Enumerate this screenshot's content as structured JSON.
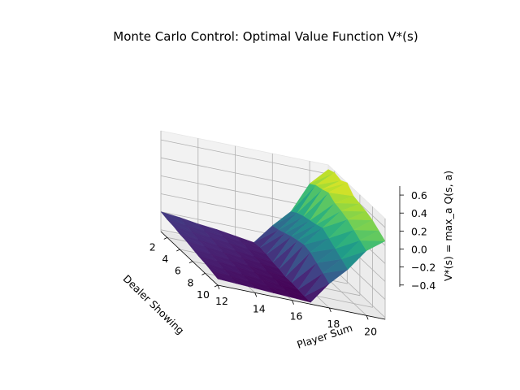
{
  "chart_data": {
    "type": "surface3d",
    "title": "Monte Carlo Control: Optimal Value Function V*(s)",
    "xlabel": "Dealer Showing",
    "ylabel": "Player Sum",
    "zlabel": "V*(s) = max_a Q(s, a)",
    "x_ticks": [
      "2",
      "4",
      "6",
      "8",
      "10"
    ],
    "y_ticks": [
      "12",
      "14",
      "16",
      "18",
      "20"
    ],
    "z_ticks": [
      "−0.4",
      "−0.2",
      "0.0",
      "0.2",
      "0.4",
      "0.6"
    ],
    "x": [
      1,
      2,
      3,
      4,
      5,
      6,
      7,
      8,
      9,
      10
    ],
    "y": [
      12,
      13,
      14,
      15,
      16,
      17,
      18,
      19,
      20,
      21
    ],
    "zlim": [
      -0.42,
      0.7
    ],
    "colormap": "viridis",
    "grid": true,
    "values": [
      [
        -0.2,
        -0.22,
        -0.25,
        -0.27,
        -0.3,
        -0.33,
        -0.1,
        0.1,
        0.45,
        0.65
      ],
      [
        -0.22,
        -0.24,
        -0.26,
        -0.28,
        -0.3,
        -0.32,
        -0.08,
        0.15,
        0.5,
        0.68
      ],
      [
        -0.23,
        -0.25,
        -0.27,
        -0.29,
        -0.31,
        -0.33,
        -0.05,
        0.18,
        0.52,
        0.66
      ],
      [
        -0.25,
        -0.27,
        -0.29,
        -0.31,
        -0.33,
        -0.35,
        -0.02,
        0.2,
        0.55,
        0.7
      ],
      [
        -0.26,
        -0.28,
        -0.3,
        -0.32,
        -0.34,
        -0.36,
        0.0,
        0.22,
        0.5,
        0.62
      ],
      [
        -0.28,
        -0.3,
        -0.32,
        -0.34,
        -0.36,
        -0.38,
        0.02,
        0.25,
        0.48,
        0.6
      ],
      [
        -0.3,
        -0.31,
        -0.33,
        -0.35,
        -0.37,
        -0.38,
        0.0,
        0.2,
        0.45,
        0.58
      ],
      [
        -0.31,
        -0.33,
        -0.35,
        -0.36,
        -0.38,
        -0.39,
        -0.05,
        0.15,
        0.4,
        0.55
      ],
      [
        -0.33,
        -0.34,
        -0.36,
        -0.37,
        -0.38,
        -0.4,
        -0.1,
        0.1,
        0.35,
        0.5
      ],
      [
        -0.35,
        -0.36,
        -0.37,
        -0.38,
        -0.39,
        -0.4,
        -0.15,
        0.05,
        0.3,
        0.45
      ]
    ]
  }
}
